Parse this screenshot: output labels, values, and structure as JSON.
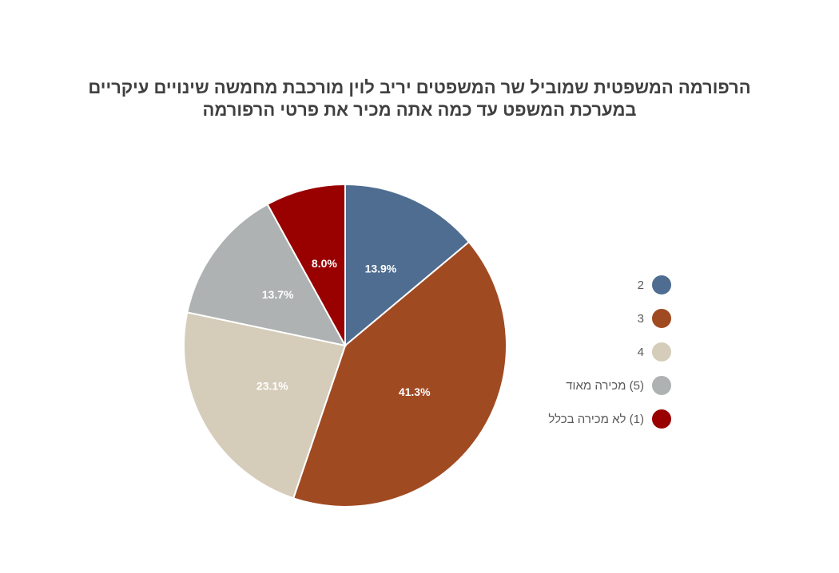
{
  "chart_data": {
    "type": "pie",
    "title_lines": [
      "הרפורמה המשפטית שמוביל שר המשפטים יריב לוין מורכבת מחמשה שינויים עיקריים",
      "במערכת המשפט  עד כמה אתה מכיר את פרטי הרפורמה"
    ],
    "slices": [
      {
        "label": "2",
        "value": 13.9,
        "display": "13.9%",
        "color": "#4F6D91"
      },
      {
        "label": "3",
        "value": 41.3,
        "display": "41.3%",
        "color": "#A04A22"
      },
      {
        "label": "4",
        "value": 23.1,
        "display": "23.1%",
        "color": "#D5CCBA"
      },
      {
        "label": "(5) מכירה מאוד",
        "value": 13.7,
        "display": "13.7%",
        "color": "#AEB2B2"
      },
      {
        "label": "(1) לא מכירה בכלל",
        "value": 8.0,
        "display": "8.0%",
        "color": "#990000"
      }
    ],
    "legend_position": "right"
  }
}
